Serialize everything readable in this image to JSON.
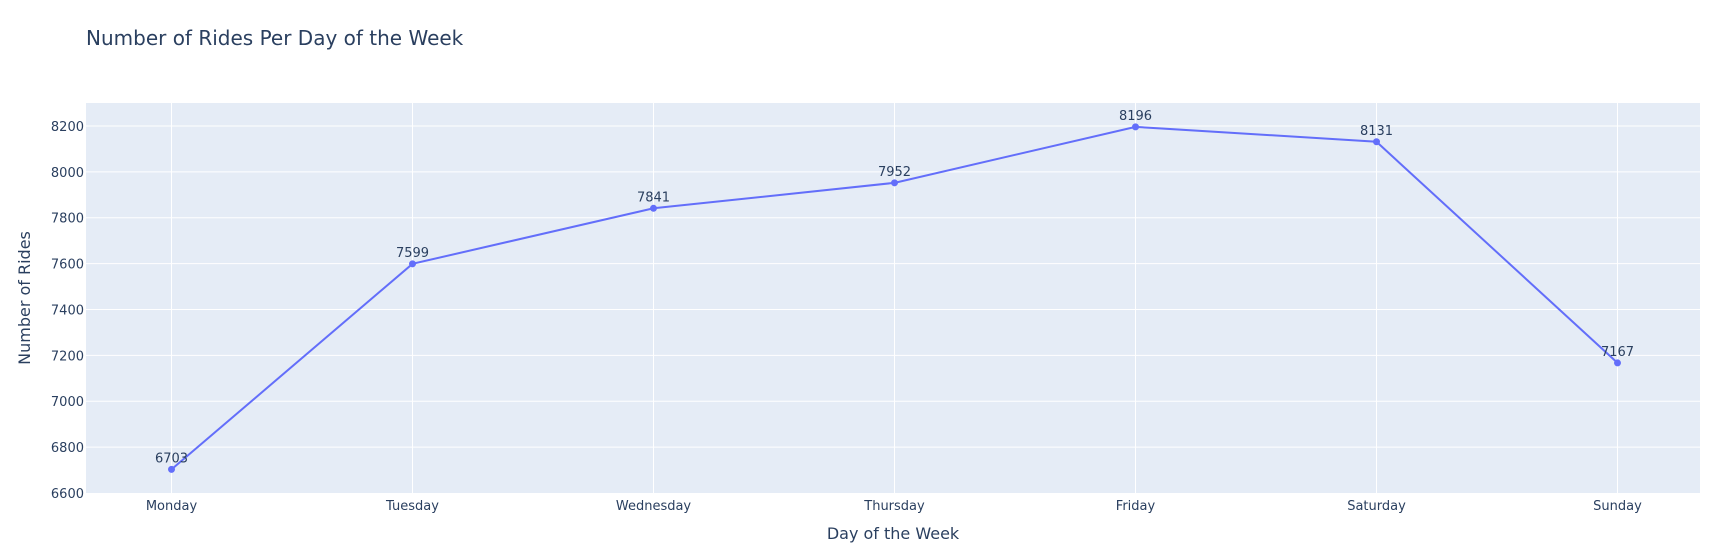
{
  "chart_data": {
    "type": "line",
    "title": "Number of Rides Per Day of the Week",
    "xlabel": "Day of the Week",
    "ylabel": "Number of Rides",
    "categories": [
      "Monday",
      "Tuesday",
      "Wednesday",
      "Thursday",
      "Friday",
      "Saturday",
      "Sunday"
    ],
    "series": [
      {
        "values": [
          6703,
          7599,
          7841,
          7952,
          8196,
          8131,
          7167
        ],
        "color": "#636efa"
      }
    ],
    "ylim": [
      6600,
      8300
    ],
    "yticks": [
      6600,
      6800,
      7000,
      7200,
      7400,
      7600,
      7800,
      8000,
      8200
    ],
    "grid": true,
    "plot_background": "#e5ecf6",
    "marker": true,
    "text_labels": true
  }
}
